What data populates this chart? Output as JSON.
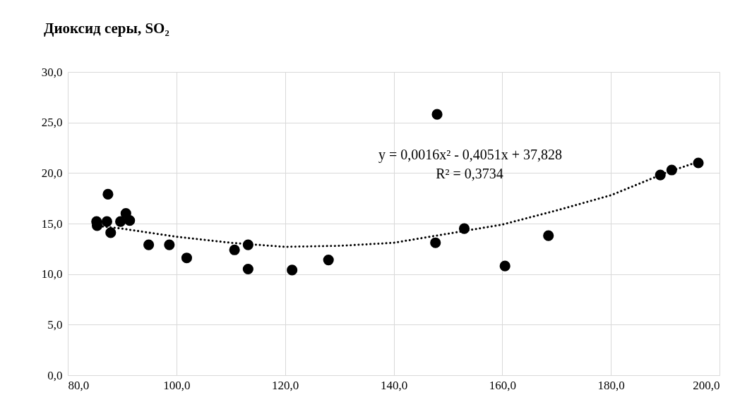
{
  "chart_data": {
    "type": "scatter",
    "title": "Диоксид серы, SO₂",
    "annotations": [
      "y = 0,0016x² - 0,4051x + 37,828",
      "R² = 0,3734"
    ],
    "series": [
      {
        "marker": "circle",
        "color": "#000000",
        "x": [
          85.3,
          85.4,
          87.4,
          87.2,
          87.9,
          89.7,
          90.7,
          91.4,
          94.9,
          98.7,
          101.9,
          110.7,
          113.2,
          113.2,
          121.3,
          128.0,
          148.0,
          147.7,
          153.0,
          160.5,
          168.5,
          189.1,
          191.2,
          196.1
        ],
        "values": [
          15.2,
          14.8,
          17.9,
          15.2,
          14.1,
          15.2,
          16.0,
          15.3,
          12.9,
          12.9,
          11.6,
          12.4,
          12.9,
          10.5,
          10.4,
          11.4,
          25.8,
          13.1,
          14.5,
          10.8,
          13.8,
          19.8,
          20.3,
          21.0
        ]
      },
      {
        "type": "line",
        "color": "#000000",
        "line_style": "dotted",
        "x": [
          85,
          90,
          100,
          110,
          120,
          130,
          140,
          150,
          160,
          170,
          180,
          190,
          196
        ],
        "values": [
          14.8,
          14.5,
          13.7,
          13.1,
          12.7,
          12.8,
          13.1,
          14.0,
          14.9,
          16.3,
          17.8,
          20.0,
          21.1
        ]
      }
    ],
    "xlim": [
      80,
      200
    ],
    "xticks": [
      {
        "value": 80,
        "label": "80,0"
      },
      {
        "value": 100,
        "label": "100,0"
      },
      {
        "value": 120,
        "label": "120,0"
      },
      {
        "value": 140,
        "label": "140,0"
      },
      {
        "value": 160,
        "label": "160,0"
      },
      {
        "value": 180,
        "label": "180,0"
      },
      {
        "value": 200,
        "label": "200,0"
      }
    ],
    "ylim": [
      0,
      30
    ],
    "yticks": [
      {
        "value": 0,
        "label": "0,0"
      },
      {
        "value": 5,
        "label": "5,0"
      },
      {
        "value": 10,
        "label": "10,0"
      },
      {
        "value": 15,
        "label": "15,0"
      },
      {
        "value": 20,
        "label": "20,0"
      },
      {
        "value": 25,
        "label": "25,0"
      },
      {
        "value": 30,
        "label": "30,0"
      }
    ],
    "grid": true
  }
}
